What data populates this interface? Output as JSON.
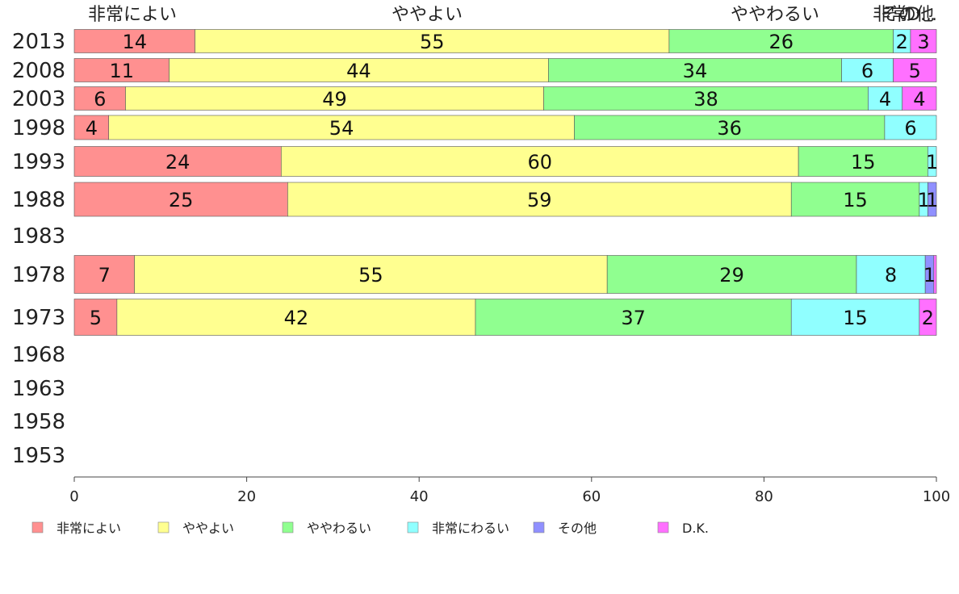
{
  "chart_data": {
    "type": "bar",
    "orientation": "horizontal",
    "stacked": true,
    "categories": [
      "2013",
      "2008",
      "2003",
      "1998",
      "1993",
      "1988",
      "1983",
      "1978",
      "1973",
      "1968",
      "1963",
      "1958",
      "1953"
    ],
    "series": [
      {
        "name": "非常によい",
        "color": "#ff9090",
        "values": [
          14,
          11,
          6,
          4,
          24,
          25,
          null,
          7,
          5,
          null,
          null,
          null,
          null
        ]
      },
      {
        "name": "ややよい",
        "color": "#ffff90",
        "values": [
          55,
          44,
          49,
          54,
          60,
          59,
          null,
          55,
          42,
          null,
          null,
          null,
          null
        ]
      },
      {
        "name": "ややわるい",
        "color": "#90ff90",
        "values": [
          26,
          34,
          38,
          36,
          15,
          15,
          null,
          29,
          37,
          null,
          null,
          null,
          null
        ]
      },
      {
        "name": "非常にわるい",
        "color": "#90ffff",
        "values": [
          2,
          6,
          4,
          6,
          1,
          1,
          null,
          8,
          15,
          null,
          null,
          null,
          null
        ]
      },
      {
        "name": "その他",
        "color": "#9090ff",
        "values": [
          0,
          0,
          0,
          0,
          0,
          1,
          null,
          1,
          0,
          null,
          null,
          null,
          null
        ]
      },
      {
        "name": "D.K.",
        "color": "#ff70ff",
        "values": [
          3,
          5,
          4,
          0,
          0,
          0,
          null,
          0.3,
          2,
          null,
          null,
          null,
          null
        ]
      }
    ],
    "top_labels": [
      "非常によい",
      "ややよい",
      "ややわるい",
      "非常",
      "その他",
      "D..."
    ],
    "xlim": [
      0,
      100
    ],
    "xticks": [
      0,
      20,
      40,
      60,
      80,
      100
    ],
    "title": "",
    "xlabel": "",
    "ylabel": "",
    "grid": false,
    "legend_position": "bottom"
  }
}
